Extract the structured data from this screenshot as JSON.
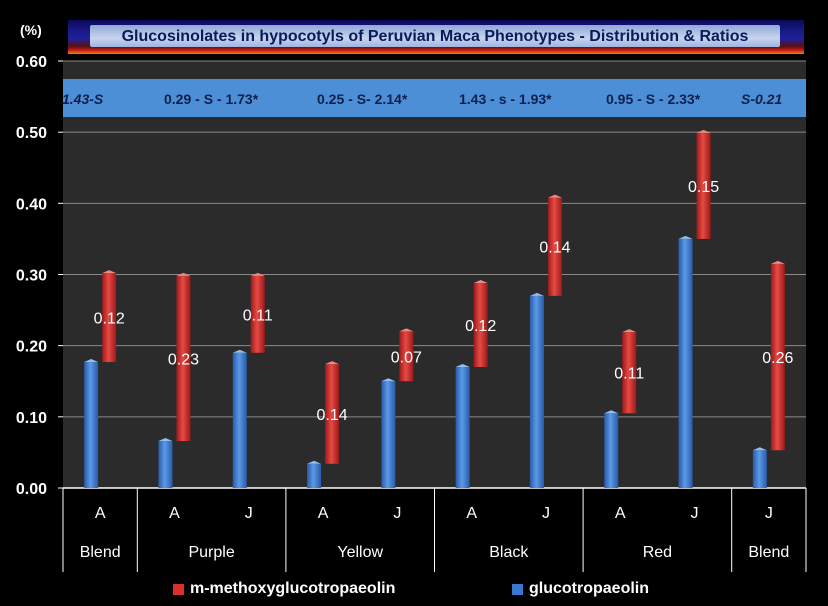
{
  "title": "Glucosinolates in hypocotyls of Peruvian Maca Phenotypes - Distribution & Ratios",
  "y_unit_label": "(%)",
  "ratios": [
    {
      "text": "1.43-S",
      "italic": true
    },
    {
      "text": "0.29 - S - 1.73*",
      "italic": false
    },
    {
      "text": "0.25 - S- 2.14*",
      "italic": false
    },
    {
      "text": "1.43  - s - 1.93*",
      "italic": false
    },
    {
      "text": "0.95 - S - 2.33*",
      "italic": false
    },
    {
      "text": "S-0.21",
      "italic": true
    }
  ],
  "legend": [
    {
      "label": "m-methoxyglucotropaeolin",
      "color": "#d8302c"
    },
    {
      "label": "glucotropaeolin",
      "color": "#3a78d0"
    }
  ],
  "colors": {
    "red": "#d8302c",
    "blue": "#3a78d0",
    "plot_bg": "#2b2b2b",
    "ratio_bar": "#4d8fd6"
  },
  "chart_data": {
    "type": "bar",
    "subtype": "floating-stacked-column",
    "ylim": [
      0,
      0.6
    ],
    "yticks": [
      "0.00",
      "0.10",
      "0.20",
      "0.30",
      "0.40",
      "0.50",
      "0.60"
    ],
    "grid": true,
    "legend_position": "bottom",
    "groups": [
      {
        "name": "Blend",
        "categories": [
          "A"
        ]
      },
      {
        "name": "Purple",
        "categories": [
          "A",
          "J"
        ]
      },
      {
        "name": "Yellow",
        "categories": [
          "A",
          "J"
        ]
      },
      {
        "name": "Black",
        "categories": [
          "A",
          "J"
        ]
      },
      {
        "name": "Red",
        "categories": [
          "A",
          "J"
        ]
      },
      {
        "name": "Blend",
        "categories": [
          "J"
        ]
      }
    ],
    "categories": [
      "A",
      "A",
      "J",
      "A",
      "J",
      "A",
      "J",
      "A",
      "J",
      "J"
    ],
    "series": [
      {
        "name": "glucotropaeolin",
        "values": [
          0.177,
          0.066,
          0.19,
          0.034,
          0.15,
          0.17,
          0.27,
          0.105,
          0.35,
          0.053
        ]
      },
      {
        "name": "m-methoxyglucotropaeolin",
        "low": [
          0.177,
          0.066,
          0.19,
          0.034,
          0.15,
          0.17,
          0.27,
          0.105,
          0.35,
          0.053
        ],
        "high": [
          0.302,
          0.298,
          0.298,
          0.174,
          0.22,
          0.288,
          0.408,
          0.219,
          0.499,
          0.315
        ]
      }
    ],
    "data_labels": [
      "0.12",
      "0.23",
      "0.11",
      "0.14",
      "0.07",
      "0.12",
      "0.14",
      "0.11",
      "0.15",
      "0.26"
    ]
  }
}
